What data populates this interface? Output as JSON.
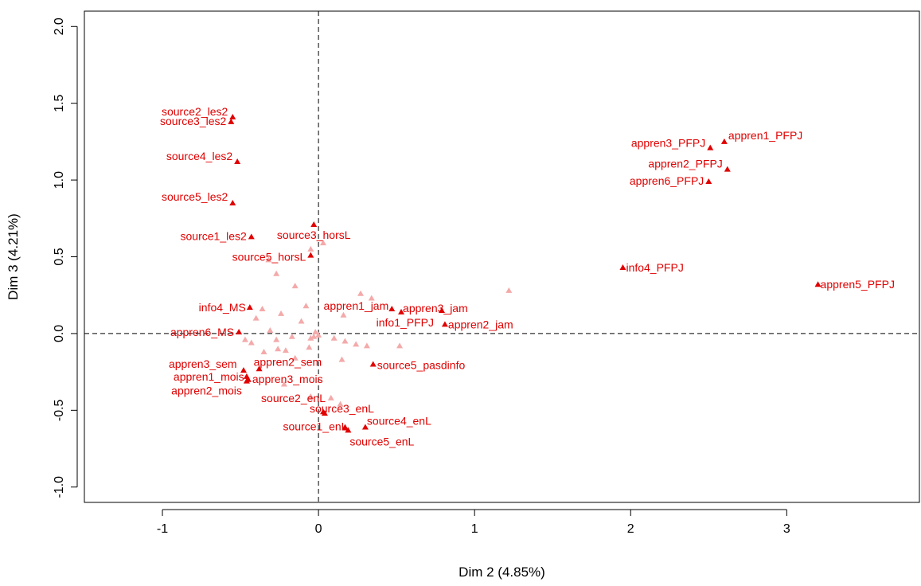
{
  "chart_data": {
    "type": "scatter",
    "xlabel": "Dim 2 (4.85%)",
    "ylabel": "Dim 3 (4.21%)",
    "xlim": [
      -1.5,
      3.85
    ],
    "ylim": [
      -1.1,
      2.1
    ],
    "x_ticks": [
      -1,
      0,
      1,
      2,
      3
    ],
    "y_ticks": [
      -1.0,
      -0.5,
      0.0,
      0.5,
      1.0,
      1.5,
      2.0
    ],
    "x_tick_labels": [
      "-1",
      "0",
      "1",
      "2",
      "3"
    ],
    "y_tick_labels": [
      "-1.0",
      "-0.5",
      "0.0",
      "0.5",
      "1.0",
      "1.5",
      "2.0"
    ],
    "reference_lines": {
      "x": 0,
      "y": 0,
      "style": "dashed"
    },
    "colors": {
      "highlighted": "#e00000",
      "faded": "#f4aaaa",
      "axis": "#000000"
    },
    "series": [
      {
        "marker": "triangle",
        "color": "#e00000",
        "points": [
          {
            "label": "source2_les2",
            "x": -0.55,
            "y": 1.41
          },
          {
            "label": "source3_les2",
            "x": -0.56,
            "y": 1.38
          },
          {
            "label": "source4_les2",
            "x": -0.52,
            "y": 1.12
          },
          {
            "label": "source5_les2",
            "x": -0.55,
            "y": 0.85
          },
          {
            "label": "source1_les2",
            "x": -0.43,
            "y": 0.63
          },
          {
            "label": "source3_horsL",
            "x": -0.03,
            "y": 0.71
          },
          {
            "label": "source5_horsL",
            "x": -0.05,
            "y": 0.51
          },
          {
            "label": "appren1_PFPJ",
            "x": 2.6,
            "y": 1.25
          },
          {
            "label": "appren3_PFPJ",
            "x": 2.51,
            "y": 1.21
          },
          {
            "label": "appren2_PFPJ",
            "x": 2.62,
            "y": 1.07
          },
          {
            "label": "appren6_PFPJ",
            "x": 2.5,
            "y": 0.99
          },
          {
            "label": "info4_PFPJ",
            "x": 1.95,
            "y": 0.43
          },
          {
            "label": "appren5_PFPJ",
            "x": 3.2,
            "y": 0.32
          },
          {
            "label": "info4_MS",
            "x": -0.44,
            "y": 0.17
          },
          {
            "label": "appren6_MS",
            "x": -0.51,
            "y": 0.01
          },
          {
            "label": "appren1_jam",
            "x": 0.47,
            "y": 0.16
          },
          {
            "label": "appren3_jam",
            "x": 0.53,
            "y": 0.14
          },
          {
            "label": "info1_PFPJ",
            "x": 0.79,
            "y": 0.15
          },
          {
            "label": "appren2_jam",
            "x": 0.81,
            "y": 0.06
          },
          {
            "label": "appren2_sem",
            "x": -0.38,
            "y": -0.23
          },
          {
            "label": "appren3_sem",
            "x": -0.48,
            "y": -0.24
          },
          {
            "label": "appren1_mois",
            "x": -0.46,
            "y": -0.28
          },
          {
            "label": "appren3_mois",
            "x": -0.45,
            "y": -0.3
          },
          {
            "label": "appren2_mois",
            "x": -0.46,
            "y": -0.31
          },
          {
            "label": "source5_pasdinfo",
            "x": 0.35,
            "y": -0.2
          },
          {
            "label": "source2_enL",
            "x": 0.03,
            "y": -0.51
          },
          {
            "label": "source3_enL",
            "x": 0.04,
            "y": -0.52
          },
          {
            "label": "source4_enL",
            "x": 0.3,
            "y": -0.61
          },
          {
            "label": "source1_enL",
            "x": 0.17,
            "y": -0.61
          },
          {
            "label": "source5_enL",
            "x": 0.19,
            "y": -0.63
          }
        ]
      },
      {
        "marker": "triangle",
        "color": "#f4aaaa",
        "points": [
          {
            "x": 0.03,
            "y": 0.59
          },
          {
            "x": -0.05,
            "y": 0.55
          },
          {
            "x": -0.32,
            "y": 0.48
          },
          {
            "x": -0.27,
            "y": 0.39
          },
          {
            "x": -0.15,
            "y": 0.31
          },
          {
            "x": 0.27,
            "y": 0.26
          },
          {
            "x": 0.34,
            "y": 0.23
          },
          {
            "x": 1.22,
            "y": 0.28
          },
          {
            "x": -0.08,
            "y": 0.18
          },
          {
            "x": -0.36,
            "y": 0.16
          },
          {
            "x": -0.24,
            "y": 0.13
          },
          {
            "x": 0.16,
            "y": 0.12
          },
          {
            "x": -0.11,
            "y": 0.08
          },
          {
            "x": -0.4,
            "y": 0.1
          },
          {
            "x": -0.31,
            "y": 0.02
          },
          {
            "x": -0.02,
            "y": 0.01
          },
          {
            "x": 0.0,
            "y": -0.01
          },
          {
            "x": -0.03,
            "y": -0.02
          },
          {
            "x": -0.47,
            "y": -0.04
          },
          {
            "x": -0.43,
            "y": -0.06
          },
          {
            "x": -0.27,
            "y": -0.04
          },
          {
            "x": -0.17,
            "y": -0.02
          },
          {
            "x": -0.05,
            "y": -0.03
          },
          {
            "x": 0.1,
            "y": -0.03
          },
          {
            "x": 0.17,
            "y": -0.05
          },
          {
            "x": 0.24,
            "y": -0.07
          },
          {
            "x": 0.31,
            "y": -0.08
          },
          {
            "x": 0.52,
            "y": -0.08
          },
          {
            "x": -0.26,
            "y": -0.1
          },
          {
            "x": -0.06,
            "y": -0.09
          },
          {
            "x": -0.35,
            "y": -0.12
          },
          {
            "x": -0.21,
            "y": -0.11
          },
          {
            "x": -0.15,
            "y": -0.16
          },
          {
            "x": 0.15,
            "y": -0.17
          },
          {
            "x": -0.22,
            "y": -0.33
          },
          {
            "x": 0.08,
            "y": -0.42
          },
          {
            "x": 0.14,
            "y": -0.46
          },
          {
            "x": -0.05,
            "y": -0.41
          }
        ]
      }
    ]
  }
}
